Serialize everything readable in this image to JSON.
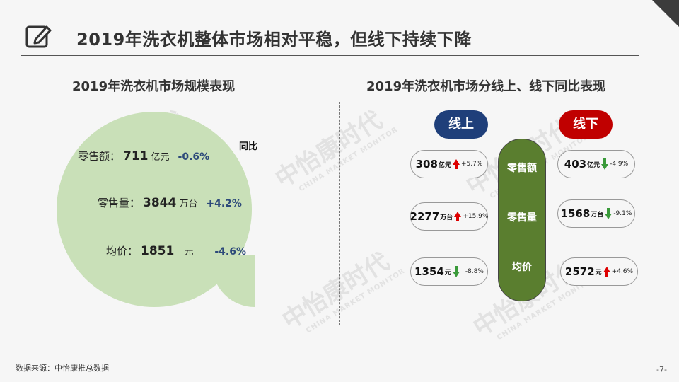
{
  "header": {
    "title": "2019年洗衣机整体市场相对平稳，但线下持续下降",
    "icon": "edit-note-icon"
  },
  "left": {
    "section_title": "2019年洗衣机市场规模表现",
    "yoy_label": "同比",
    "rows": [
      {
        "label": "零售额：",
        "value": "711",
        "unit": "亿元",
        "change": "-0.6%"
      },
      {
        "label": "零售量：",
        "value": "3844",
        "unit": "万台",
        "change": "+4.2%"
      },
      {
        "label": "均价：",
        "value": "1851",
        "unit": "元",
        "change": "-4.6%"
      }
    ]
  },
  "right": {
    "section_title": "2019年洗衣机市场分线上、线下同比表现",
    "online_label": "线上",
    "offline_label": "线下",
    "metrics": [
      "零售额",
      "零售量",
      "均价"
    ],
    "online": [
      {
        "value": "308",
        "unit": "亿元",
        "direction": "up",
        "change": "+5.7%"
      },
      {
        "value": "2277",
        "unit": "万台",
        "direction": "up",
        "change": "+15.9%"
      },
      {
        "value": "1354",
        "unit": "元",
        "direction": "down",
        "change": "-8.8%"
      }
    ],
    "offline": [
      {
        "value": "403",
        "unit": "亿元",
        "direction": "down",
        "change": "-4.9%"
      },
      {
        "value": "1568",
        "unit": "万台",
        "direction": "down",
        "change": "-9.1%"
      },
      {
        "value": "2572",
        "unit": "元",
        "direction": "up",
        "change": "+4.6%"
      }
    ]
  },
  "watermark": {
    "cn": "中怡康时代",
    "en": "CHINA MARKET MONITOR",
    "logo": "CMM"
  },
  "footer": {
    "source": "数据来源：中怡康推总数据",
    "page": "-7-"
  },
  "colors": {
    "online": "#1f3f7a",
    "offline": "#c00000",
    "spine": "#5a7e2f",
    "bubble": "#c9e0b8",
    "up": "#dd0000",
    "down": "#3a9a3a"
  }
}
